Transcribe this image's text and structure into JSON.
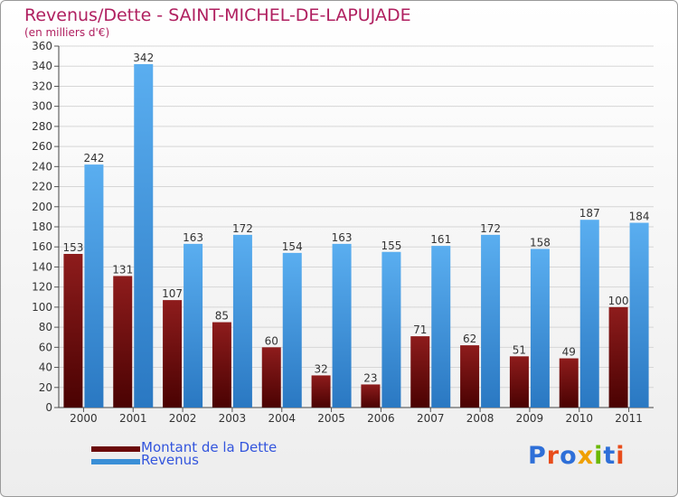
{
  "title": "Revenus/Dette - SAINT-MICHEL-DE-LAPUJADE",
  "subtitle": "(en milliers d'€)",
  "colors": {
    "dette": "#6b0a0a",
    "revenus": "#3a8fd6",
    "title": "#b02060",
    "legend_text": "#3355dd"
  },
  "chart_data": {
    "type": "bar",
    "categories": [
      "2000",
      "2001",
      "2002",
      "2003",
      "2004",
      "2005",
      "2006",
      "2007",
      "2008",
      "2009",
      "2010",
      "2011"
    ],
    "series": [
      {
        "name": "Montant de la Dette",
        "values": [
          153,
          131,
          107,
          85,
          60,
          32,
          23,
          71,
          62,
          51,
          49,
          100
        ]
      },
      {
        "name": "Revenus",
        "values": [
          242,
          342,
          163,
          172,
          154,
          163,
          155,
          161,
          172,
          158,
          187,
          184
        ]
      }
    ],
    "ylim": [
      0,
      360
    ],
    "yticks": [
      0,
      20,
      40,
      60,
      80,
      100,
      120,
      140,
      160,
      180,
      200,
      220,
      240,
      260,
      280,
      300,
      320,
      340,
      360
    ],
    "grid": true,
    "legend_position": "bottom-left"
  },
  "legend": [
    {
      "label": "Montant de la Dette"
    },
    {
      "label": "Revenus"
    }
  ],
  "logo": {
    "letters": [
      "P",
      "r",
      "o",
      "x",
      "i",
      "t",
      "i"
    ],
    "colors": [
      "#2e6fd8",
      "#e84c1a",
      "#2e6fd8",
      "#f0a000",
      "#6ab800",
      "#2e6fd8",
      "#e84c1a"
    ]
  }
}
